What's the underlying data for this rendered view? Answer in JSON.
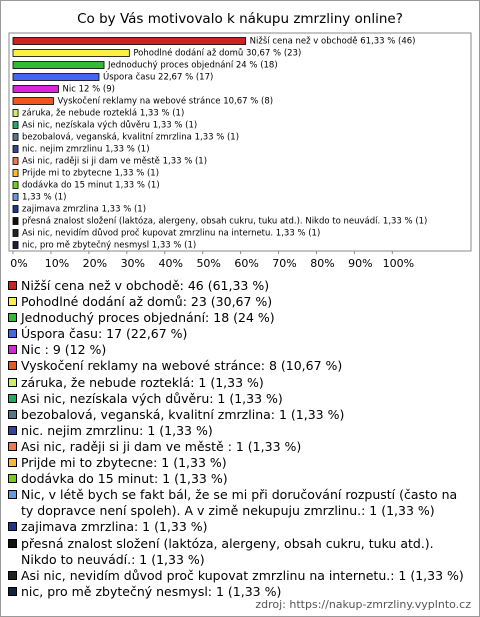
{
  "chart_data": {
    "type": "hbar",
    "title": "Co by Vás motivovalo k nákupu zmrzliny online?",
    "categories": [
      "Nižší cena než v obchodě",
      "Pohodlné dodání až domů",
      "Jednoduchý proces objednání",
      "Úspora času",
      "Nic",
      "Vyskočení reklamy na webové stránce",
      "záruka, že nebude rozteklá",
      "Asi nic, nezískala vých důvěru",
      "bezobalová, veganská, kvalitní zmrzlina",
      "nic. nejim zmrzlinu",
      "Asi nic, raději si ji dam ve městě",
      "Prijde mi to zbytecne",
      "dodávka do 15 minut",
      "Nic, v létě bych se fakt bál, že se mi při doručování rozpustí (často na ty dopravce není spoleh). A v zimě nekupuju zmrzlinu.",
      "zajimava zmrzlina",
      "přesná znalost složení (laktóza, alergeny, obsah cukru, tuku atd.). Nikdo to neuvádí.",
      "Asi nic, nevidím důvod proč kupovat zmrzlinu na internetu.",
      "nic, pro mě zbytečný nesmysl"
    ],
    "values": [
      61.33,
      30.67,
      24,
      22.67,
      12,
      10.67,
      1.33,
      1.33,
      1.33,
      1.33,
      1.33,
      1.33,
      1.33,
      1.33,
      1.33,
      1.33,
      1.33,
      1.33
    ],
    "value_labels": [
      "Nižší cena než v obchodě 61,33 % (46)",
      "Pohodlné dodání až domů 30,67 % (23)",
      "Jednoduchý proces objednání 24 % (18)",
      "Úspora času 22,67 % (17)",
      "Nic  12 % (9)",
      "Vyskočení reklamy na webové stránce 10,67 % (8)",
      "záruka, že nebude rozteklá 1,33 % (1)",
      "Asi nic, nezískala vých důvěru 1,33 % (1)",
      "bezobalová, veganská, kvalitní zmrzlina 1,33 % (1)",
      "nic. nejim zmrzlinu 1,33 % (1)",
      "Asi nic, raději si ji dam ve městě  1,33 % (1)",
      "Prijde mi to zbytecne 1,33 % (1)",
      "dodávka do 15 minut 1,33 % (1)",
      "1,33 % (1)",
      "zajimava zmrzlina 1,33 % (1)",
      "přesná znalost složení (laktóza, alergeny, obsah cukru, tuku atd.). Nikdo to neuvádí. 1,33 % (1)",
      "Asi nic, nevidím důvod proč kupovat zmrzlinu na internetu. 1,33 % (1)",
      "nic, pro mě zbytečný nesmysl 1,33 % (1)"
    ],
    "legend_labels": [
      "Nižší cena než v obchodě: 46 (61,33 %)",
      "Pohodlné dodání až domů: 23 (30,67 %)",
      "Jednoduchý proces objednání: 18 (24 %)",
      "Úspora času: 17 (22,67 %)",
      "Nic : 9 (12 %)",
      "Vyskočení reklamy na webové stránce: 8 (10,67 %)",
      "záruka, že nebude rozteklá: 1 (1,33 %)",
      "Asi nic, nezískala vých důvěru: 1 (1,33 %)",
      "bezobalová, veganská, kvalitní zmrzlina: 1 (1,33 %)",
      "nic. nejim zmrzlinu: 1 (1,33 %)",
      "Asi nic, raději si ji dam ve městě : 1 (1,33 %)",
      "Prijde mi to zbytecne: 1 (1,33 %)",
      "dodávka do 15 minut: 1 (1,33 %)",
      "Nic, v létě bych se fakt bál, že se mi při doručování rozpustí (často na ty dopravce není spoleh). A v zimě nekupuju zmrzlinu.: 1 (1,33 %)",
      "zajimava zmrzlina: 1 (1,33 %)",
      "přesná znalost složení (laktóza, alergeny, obsah cukru, tuku atd.). Nikdo to neuvádí.: 1 (1,33 %)",
      "Asi nic, nevidím důvod proč kupovat zmrzlinu na internetu.: 1 (1,33 %)",
      "nic, pro mě zbytečný nesmysl: 1 (1,33 %)"
    ],
    "colors": [
      "#cc2222",
      "#ffee44",
      "#33bb33",
      "#4466ee",
      "#dd22dd",
      "#ee5522",
      "#ccee66",
      "#22aa66",
      "#557788",
      "#334499",
      "#ee7755",
      "#ffbb22",
      "#77cc22",
      "#6699dd",
      "#223388",
      "#111111",
      "#222222",
      "#112244"
    ],
    "xlim": [
      0,
      121
    ],
    "xticks": [
      {
        "value": 0,
        "label": "0%"
      },
      {
        "value": 10,
        "label": "10%"
      },
      {
        "value": 20,
        "label": "20%"
      },
      {
        "value": 30,
        "label": "30%"
      },
      {
        "value": 40,
        "label": "40%"
      },
      {
        "value": 50,
        "label": "50%"
      },
      {
        "value": 60,
        "label": "60%"
      },
      {
        "value": 70,
        "label": "70%"
      },
      {
        "value": 80,
        "label": "80%"
      },
      {
        "value": 90,
        "label": "90%"
      },
      {
        "value": 100,
        "label": "100%"
      }
    ],
    "source": "zdroj: https://nakup-zmrzliny.vyplnto.cz"
  }
}
